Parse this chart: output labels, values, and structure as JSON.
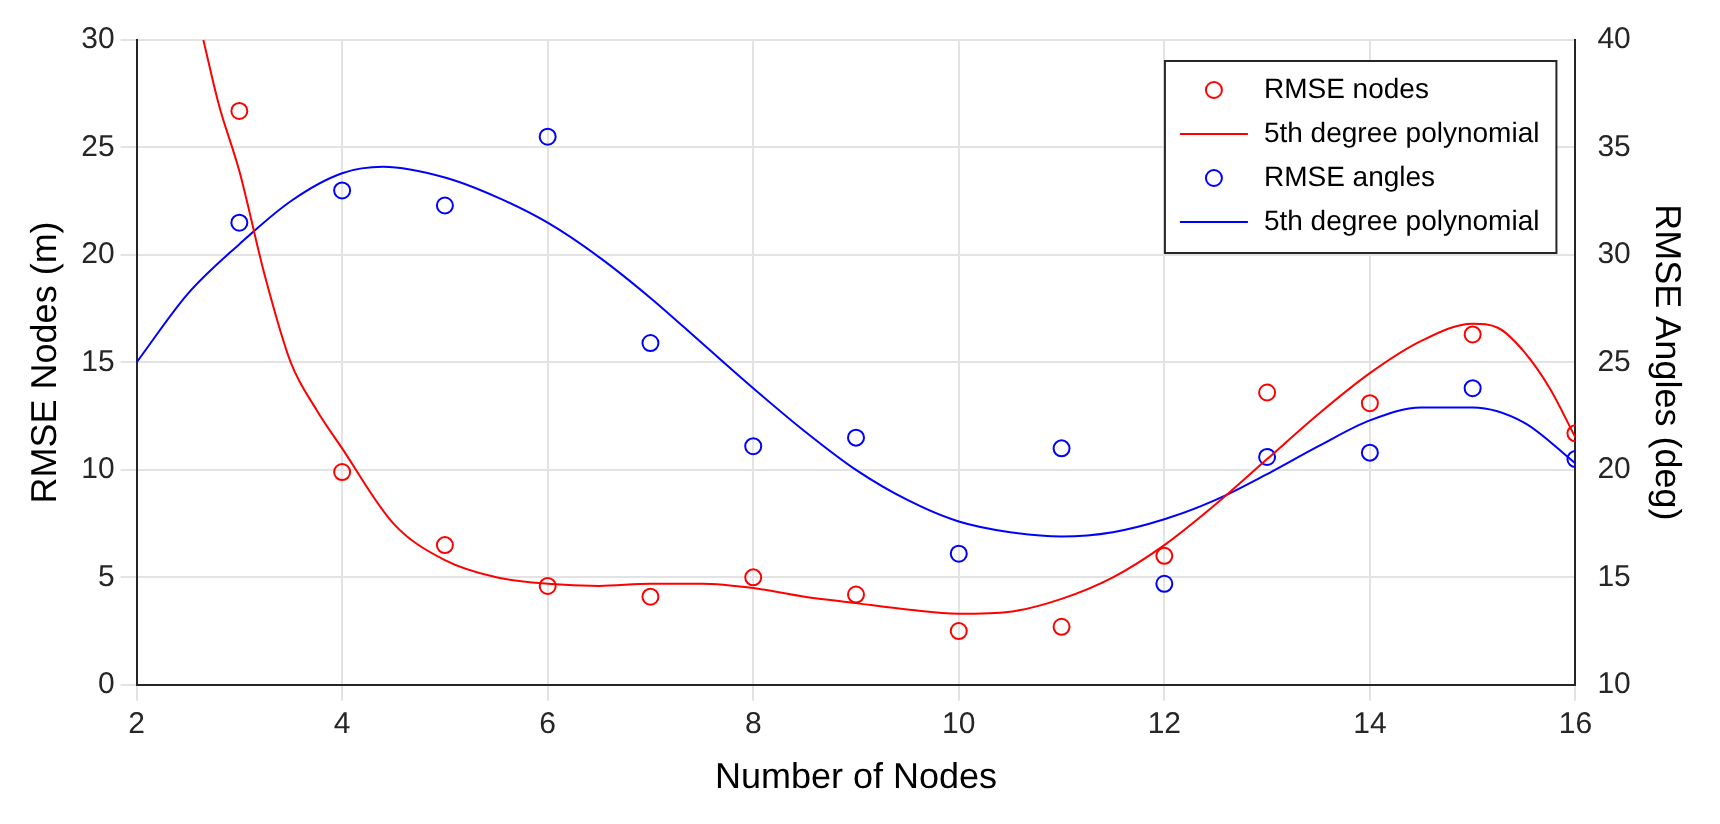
{
  "chart_data": {
    "type": "scatter",
    "xlabel": "Number of Nodes",
    "ylabel": "RMSE Nodes (m)",
    "y2label": "RMSE Angles (deg)",
    "xlim": [
      2,
      16
    ],
    "xticks": [
      2,
      4,
      6,
      8,
      10,
      12,
      14,
      16
    ],
    "ylim": [
      0,
      30
    ],
    "yticks": [
      0,
      5,
      10,
      15,
      20,
      25,
      30
    ],
    "y2lim": [
      10,
      40
    ],
    "y2ticks": [
      10,
      15,
      20,
      25,
      30,
      35,
      40
    ],
    "grid": true,
    "legend": "top right",
    "series": [
      {
        "name": "RMSE nodes",
        "type": "scatter",
        "marker": "circle",
        "color": "#ff0000",
        "x": [
          3,
          4,
          5,
          6,
          7,
          8,
          9,
          10,
          11,
          12,
          13,
          14,
          15,
          16
        ],
        "values": [
          26.7,
          9.9,
          6.5,
          4.6,
          4.1,
          5.0,
          4.2,
          2.5,
          2.7,
          6.0,
          13.6,
          13.1,
          16.3,
          11.7
        ]
      },
      {
        "name": "5th degree polynomial",
        "type": "line",
        "marker": "none",
        "color": "#ff0000",
        "x": [
          2.65,
          2.8,
          3,
          3.25,
          3.5,
          3.75,
          4,
          4.5,
          5,
          5.5,
          6,
          6.5,
          7,
          7.5,
          8,
          8.5,
          9,
          9.5,
          10,
          10.5,
          11,
          11.5,
          12,
          12.5,
          13,
          13.5,
          14,
          14.5,
          15,
          15.25,
          15.5,
          15.75,
          16
        ],
        "values": [
          30,
          27,
          23.9,
          19,
          15,
          12.8,
          11,
          7.5,
          5.8,
          5.0,
          4.7,
          4.6,
          4.7,
          4.7,
          4.5,
          4.1,
          3.8,
          3.5,
          3.3,
          3.4,
          4.0,
          5.0,
          6.5,
          8.4,
          10.5,
          12.6,
          14.5,
          16.0,
          16.8,
          16.6,
          15.5,
          13.8,
          11.5
        ]
      },
      {
        "name": "RMSE angles",
        "type": "scatter",
        "marker": "circle",
        "color": "#0000ff",
        "axis": "y2",
        "x": [
          3,
          4,
          5,
          6,
          7,
          8,
          9,
          10,
          11,
          12,
          13,
          14,
          15,
          16
        ],
        "values": [
          31.5,
          33.0,
          32.3,
          35.5,
          25.9,
          21.1,
          21.5,
          16.1,
          21.0,
          14.7,
          20.6,
          20.8,
          23.8,
          20.5
        ]
      },
      {
        "name": "5th degree polynomial",
        "type": "line",
        "marker": "none",
        "color": "#0000ff",
        "axis": "y2",
        "x": [
          2,
          2.5,
          3,
          3.5,
          4,
          4.4,
          5,
          5.5,
          6,
          6.5,
          7,
          7.5,
          8,
          8.5,
          9,
          9.5,
          10,
          10.5,
          11,
          11.5,
          12,
          12.5,
          13,
          13.5,
          14,
          14.5,
          15,
          15.5,
          16
        ],
        "values": [
          25.0,
          28.2,
          30.5,
          32.5,
          33.8,
          34.1,
          33.6,
          32.7,
          31.5,
          29.9,
          28.0,
          25.9,
          23.8,
          21.8,
          20.0,
          18.6,
          17.6,
          17.1,
          16.9,
          17.1,
          17.7,
          18.6,
          19.8,
          21.1,
          22.3,
          22.9,
          22.9,
          22.2,
          20.3
        ]
      }
    ]
  }
}
